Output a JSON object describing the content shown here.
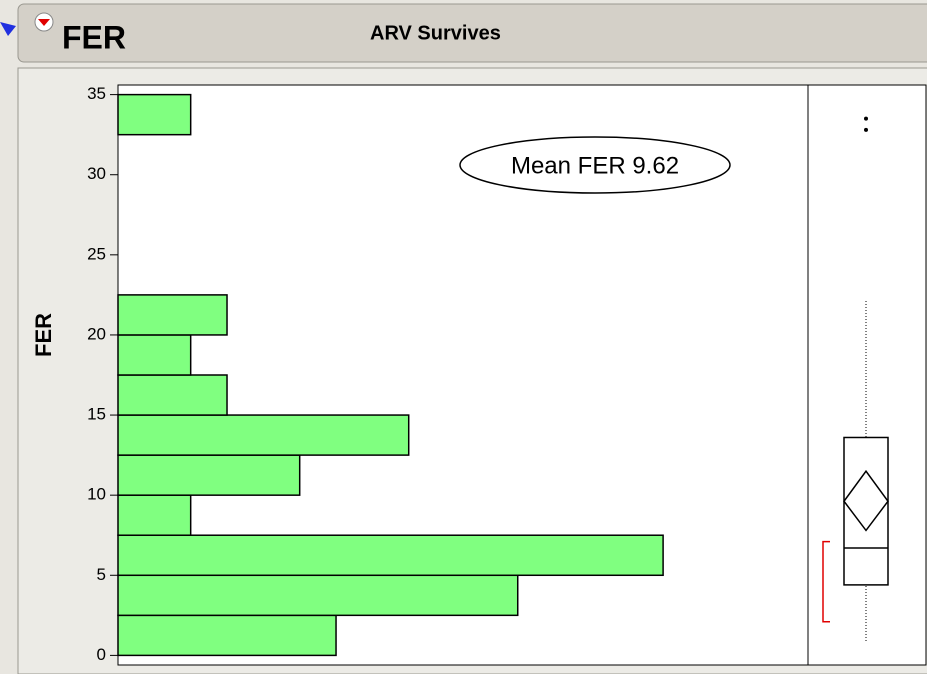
{
  "chart_data": {
    "type": "histogram",
    "title": "FER",
    "subtitle": "ARV Survives",
    "y_label": "FER",
    "orientation": "horizontal",
    "bins": [
      0,
      2.5,
      5,
      7.5,
      10,
      12.5,
      15,
      17.5,
      20,
      22.5,
      25,
      27.5,
      30,
      32.5,
      35
    ],
    "counts": [
      6,
      11,
      15,
      2,
      5,
      8,
      3,
      2,
      3,
      0,
      0,
      0,
      0,
      2
    ],
    "color": "#80ff80",
    "ylim": [
      -0.6,
      35.6
    ],
    "yticks": [
      0,
      5,
      10,
      15,
      20,
      25,
      30,
      35
    ],
    "annotation": "Mean FER 9.62",
    "box": {
      "whisker_low": 0.9,
      "q1": 4.4,
      "median": 6.7,
      "q3": 13.6,
      "whisker_high": 22.2,
      "mean": 9.62,
      "mean_ci": [
        7.8,
        11.5
      ],
      "outliers": [
        33.5,
        32.8
      ],
      "shortest_half": [
        2.1,
        7.1
      ]
    }
  }
}
